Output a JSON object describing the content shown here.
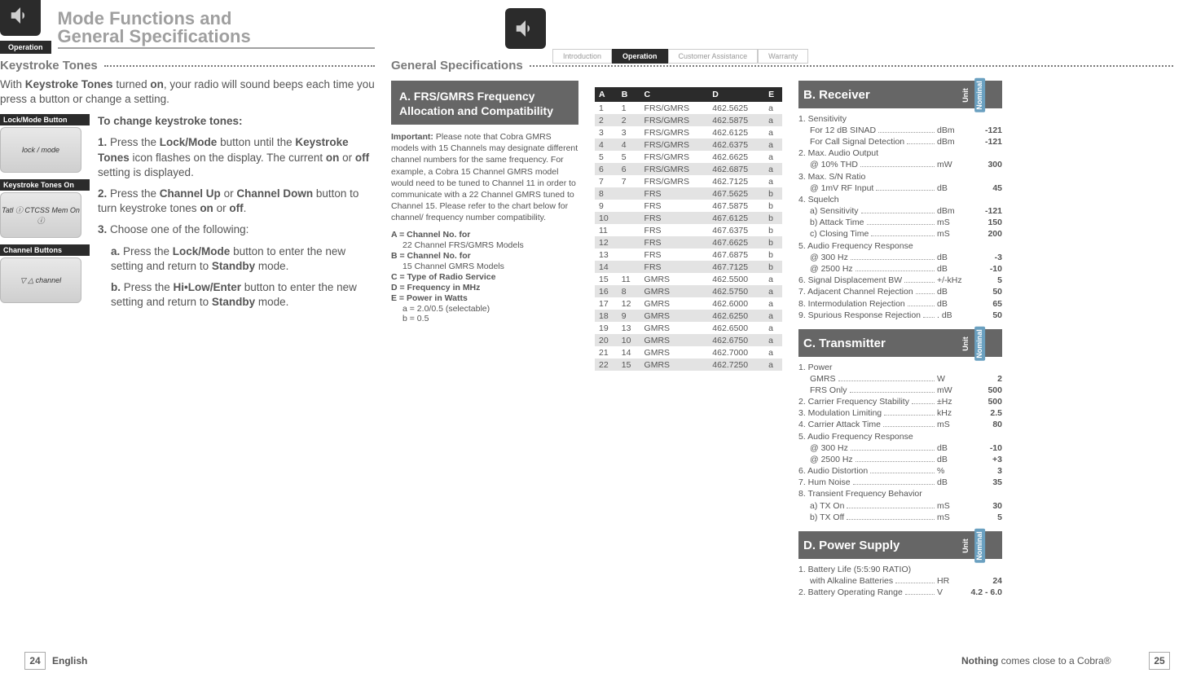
{
  "left": {
    "icon_tab": "Operation",
    "title_line1": "Mode Functions and",
    "title_line2": "General Specifications",
    "sec_heading": "Keystroke Tones",
    "intro_html": "With <b>Keystroke Tones</b> turned <b>on</b>, your radio will sound beeps each time you press a button or change a setting.",
    "callouts": [
      {
        "label": "Lock/Mode Button",
        "caption": "lock / mode"
      },
      {
        "label": "Keystroke Tones On",
        "caption": "Tatl ⓘ CTCSS Mem On ⓘ"
      },
      {
        "label": "Channel Buttons",
        "caption": "▽   △   channel"
      }
    ],
    "steps_heading": "To change keystroke tones:",
    "steps": [
      "<b>1.</b> Press the <b>Lock/Mode</b> button until the <b>Keystroke Tones</b> icon flashes on the display. The current <b>on</b> or <b>off</b> setting is displayed.",
      "<b>2.</b> Press the <b>Channel Up</b> or <b>Channel Down</b> button to turn keystroke tones <b>on</b> or <b>off</b>.",
      "<b>3.</b> Choose one of the following:"
    ],
    "substeps": [
      "<b>a.</b> Press the <b>Lock/Mode</b> button to enter the new setting and return to <b>Standby</b> mode.",
      "<b>b.</b> Press the <b>Hi•Low/Enter</b> button to enter the new setting and return to <b>Standby</b> mode."
    ]
  },
  "right": {
    "tabs": [
      "Introduction",
      "Operation",
      "Customer Assistance",
      "Warranty"
    ],
    "active_tab_index": 1,
    "sec_heading": "General Specifications",
    "panelA_title": "A. FRS/GMRS Frequency Allocation and Compatibility",
    "important_html": "<b>Important:</b> Please note that Cobra GMRS models with 15 Channels may designate different channel numbers for the same frequency. For example, a Cobra 15 Channel GMRS model would need to be tuned to Channel 11 in order to communicate with a 22 Channel GMRS tuned to Channel 15. Please refer to the chart below for channel/ frequency number compatibility.",
    "legend": [
      {
        "b": "A = Channel No. for",
        "sub": "22 Channel FRS/GMRS Models"
      },
      {
        "b": "B = Channel No. for",
        "sub": "15 Channel GMRS Models"
      },
      {
        "b": "C = Type of Radio Service",
        "sub": ""
      },
      {
        "b": "D = Frequency in MHz",
        "sub": ""
      },
      {
        "b": "E = Power in Watts",
        "sub": "a = 2.0/0.5 (selectable)<br>b = 0.5"
      }
    ],
    "freq_table": {
      "headers": [
        "A",
        "B",
        "C",
        "D",
        "E"
      ],
      "rows": [
        [
          "1",
          "1",
          "FRS/GMRS",
          "462.5625",
          "a"
        ],
        [
          "2",
          "2",
          "FRS/GMRS",
          "462.5875",
          "a"
        ],
        [
          "3",
          "3",
          "FRS/GMRS",
          "462.6125",
          "a"
        ],
        [
          "4",
          "4",
          "FRS/GMRS",
          "462.6375",
          "a"
        ],
        [
          "5",
          "5",
          "FRS/GMRS",
          "462.6625",
          "a"
        ],
        [
          "6",
          "6",
          "FRS/GMRS",
          "462.6875",
          "a"
        ],
        [
          "7",
          "7",
          "FRS/GMRS",
          "462.7125",
          "a"
        ],
        [
          "8",
          "",
          "FRS",
          "467.5625",
          "b"
        ],
        [
          "9",
          "",
          "FRS",
          "467.5875",
          "b"
        ],
        [
          "10",
          "",
          "FRS",
          "467.6125",
          "b"
        ],
        [
          "11",
          "",
          "FRS",
          "467.6375",
          "b"
        ],
        [
          "12",
          "",
          "FRS",
          "467.6625",
          "b"
        ],
        [
          "13",
          "",
          "FRS",
          "467.6875",
          "b"
        ],
        [
          "14",
          "",
          "FRS",
          "467.7125",
          "b"
        ],
        [
          "15",
          "11",
          "GMRS",
          "462.5500",
          "a"
        ],
        [
          "16",
          "8",
          "GMRS",
          "462.5750",
          "a"
        ],
        [
          "17",
          "12",
          "GMRS",
          "462.6000",
          "a"
        ],
        [
          "18",
          "9",
          "GMRS",
          "462.6250",
          "a"
        ],
        [
          "19",
          "13",
          "GMRS",
          "462.6500",
          "a"
        ],
        [
          "20",
          "10",
          "GMRS",
          "462.6750",
          "a"
        ],
        [
          "21",
          "14",
          "GMRS",
          "462.7000",
          "a"
        ],
        [
          "22",
          "15",
          "GMRS",
          "462.7250",
          "a"
        ]
      ]
    },
    "panelB_title": "B. Receiver",
    "receiver": [
      {
        "head": "1. Sensitivity"
      },
      {
        "sub": "For 12 dB SINAD",
        "unit": "dBm",
        "val": "-121"
      },
      {
        "sub": "For Call Signal Detection",
        "unit": "dBm",
        "val": "-121"
      },
      {
        "head": "2. Max. Audio Output"
      },
      {
        "sub": "@ 10% THD",
        "unit": "mW",
        "val": "300"
      },
      {
        "head": "3. Max. S/N Ratio"
      },
      {
        "sub": "@ 1mV RF Input",
        "unit": "dB",
        "val": "45"
      },
      {
        "head": "4. Squelch"
      },
      {
        "sub": "a) Sensitivity",
        "unit": "dBm",
        "val": "-121"
      },
      {
        "sub": "b) Attack Time",
        "unit": "mS",
        "val": "150"
      },
      {
        "sub": "c) Closing Time",
        "unit": "mS",
        "val": "200"
      },
      {
        "head": "5. Audio Frequency Response"
      },
      {
        "sub": "@ 300 Hz",
        "unit": "dB",
        "val": "-3"
      },
      {
        "sub": "@ 2500 Hz",
        "unit": "dB",
        "val": "-10"
      },
      {
        "line": "6. Signal Displacement BW",
        "unit": "+/-kHz",
        "val": "5"
      },
      {
        "line": "7. Adjacent Channel Rejection",
        "unit": "dB",
        "val": "50"
      },
      {
        "line": "8. Intermodulation Rejection",
        "unit": "dB",
        "val": "65"
      },
      {
        "line": "9. Spurious Response Rejection",
        "unit": ". dB",
        "val": "50"
      }
    ],
    "panelC_title": "C. Transmitter",
    "transmitter": [
      {
        "head": "1. Power"
      },
      {
        "sub": "GMRS",
        "unit": "W",
        "val": "2"
      },
      {
        "sub": "FRS Only",
        "unit": "mW",
        "val": "500"
      },
      {
        "line": "2. Carrier Frequency Stability",
        "unit": "±Hz",
        "val": "500"
      },
      {
        "line": "3. Modulation Limiting",
        "unit": "kHz",
        "val": "2.5"
      },
      {
        "line": "4. Carrier Attack Time",
        "unit": "mS",
        "val": "80"
      },
      {
        "head": "5. Audio Frequency Response"
      },
      {
        "sub": "@ 300 Hz",
        "unit": "dB",
        "val": "-10"
      },
      {
        "sub": "@ 2500 Hz",
        "unit": "dB",
        "val": "+3"
      },
      {
        "line": "6. Audio Distortion",
        "unit": "%",
        "val": "3"
      },
      {
        "line": "7. Hum Noise",
        "unit": "dB",
        "val": "35"
      },
      {
        "head": "8. Transient Frequency Behavior"
      },
      {
        "sub": "a) TX On",
        "unit": "mS",
        "val": "30"
      },
      {
        "sub": "b) TX Off",
        "unit": "mS",
        "val": "5"
      }
    ],
    "panelD_title": "D. Power Supply",
    "power": [
      {
        "head": "1. Battery Life (5:5:90 RATIO)"
      },
      {
        "sub": "with Alkaline Batteries",
        "unit": "HR",
        "val": "24"
      },
      {
        "line": "2. Battery Operating Range",
        "unit": "V",
        "val": "4.2 - 6.0"
      }
    ],
    "unit_label": "Unit",
    "nominal_label": "Nominal"
  },
  "footer": {
    "left_num": "24",
    "right_num": "25",
    "left_text": "English",
    "right_text_html": "<b>Nothing</b> comes close to a Cobra®"
  },
  "colors": {
    "dark": "#2b2b2b",
    "grey": "#7a7a7a",
    "panel": "#666666",
    "accent": "#6aa0c0"
  }
}
